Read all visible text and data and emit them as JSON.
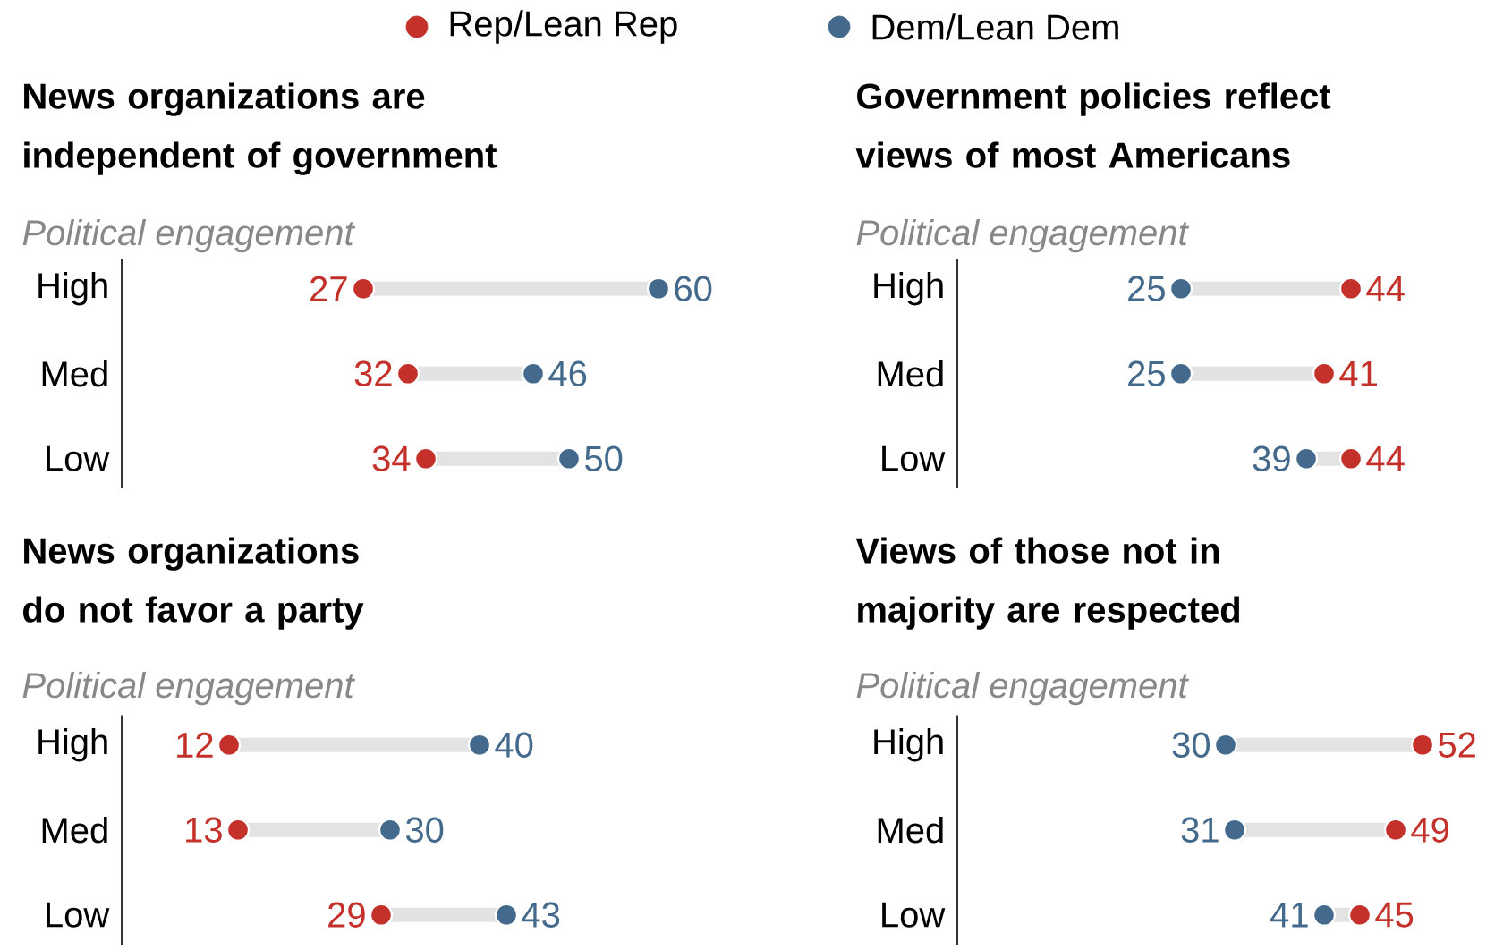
{
  "chart_data": [
    {
      "type": "scatter",
      "orientation": "horizontal",
      "title": "News organizations are independent of government",
      "ylabel": "Political engagement",
      "categories": [
        "High",
        "Med",
        "Low"
      ],
      "tick_labels": "y",
      "marker": "circle",
      "data_labels": true,
      "legend": "top",
      "series": [
        {
          "name": "Rep/Lean Rep",
          "color": "#c4302a",
          "values": [
            27,
            32,
            34
          ]
        },
        {
          "name": "Dem/Lean Dem",
          "color": "#436a8c",
          "values": [
            60,
            46,
            50
          ]
        }
      ]
    },
    {
      "type": "scatter",
      "orientation": "horizontal",
      "title": "Government policies reflect views of most Americans",
      "ylabel": "Political engagement",
      "categories": [
        "High",
        "Med",
        "Low"
      ],
      "tick_labels": "y",
      "marker": "circle",
      "data_labels": true,
      "series": [
        {
          "color": "#c4302a",
          "values": [
            44,
            41,
            44
          ]
        },
        {
          "color": "#436a8c",
          "values": [
            25,
            25,
            39
          ]
        }
      ]
    },
    {
      "type": "scatter",
      "orientation": "horizontal",
      "title": "News organizations do not favor a party",
      "ylabel": "Political engagement",
      "categories": [
        "High",
        "Med",
        "Low"
      ],
      "tick_labels": "y",
      "marker": "circle",
      "data_labels": true,
      "series": [
        {
          "color": "#c4302a",
          "values": [
            12,
            13,
            29
          ]
        },
        {
          "color": "#436a8c",
          "values": [
            40,
            30,
            43
          ]
        }
      ]
    },
    {
      "type": "scatter",
      "orientation": "horizontal",
      "title": "Views of those not in majority are respected",
      "ylabel": "Political engagement",
      "categories": [
        "High",
        "Med",
        "Low"
      ],
      "tick_labels": "y",
      "marker": "circle",
      "data_labels": true,
      "series": [
        {
          "color": "#c4302a",
          "values": [
            52,
            49,
            45
          ]
        },
        {
          "color": "#436a8c",
          "values": [
            30,
            31,
            41
          ]
        }
      ]
    }
  ]
}
